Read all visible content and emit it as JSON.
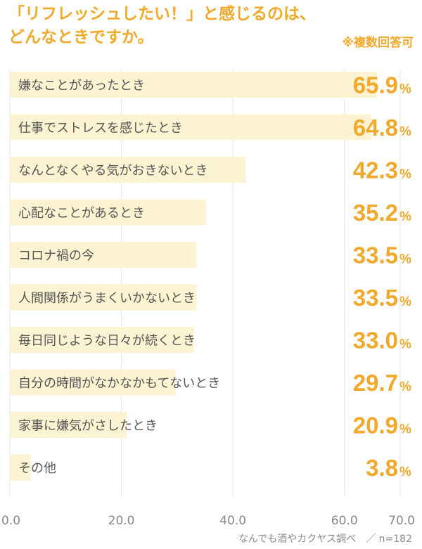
{
  "title_line1": "「リフレッシュしたい！」と感じるのは、",
  "title_line2": "どんなときですか。",
  "note": "※複数回答可",
  "source": "なんでも酒やカクヤス調べ　／ n=182",
  "colors": {
    "accent": "#f0a92a",
    "bar": "#fcf3d2",
    "label": "#555555",
    "axis": "#888888",
    "grid": "#e6e6e6"
  },
  "chart_data": {
    "type": "bar",
    "orientation": "horizontal",
    "categories": [
      "嫌なことがあったとき",
      "仕事でストレスを感じたとき",
      "なんとなくやる気がおきないとき",
      "心配なことがあるとき",
      "コロナ禍の今",
      "人間関係がうまくいかないとき",
      "毎日同じような日々が続くとき",
      "自分の時間がなかなかもてないとき",
      "家事に嫌気がさしたとき",
      "その他"
    ],
    "values": [
      65.9,
      64.8,
      42.3,
      35.2,
      33.5,
      33.5,
      33.0,
      29.7,
      20.9,
      3.8
    ],
    "value_labels": [
      "65.9",
      "64.8",
      "42.3",
      "35.2",
      "33.5",
      "33.5",
      "33.0",
      "29.7",
      "20.9",
      "3.8"
    ],
    "value_unit": "%",
    "xlim": [
      0,
      70
    ],
    "x_ticks": [
      "0.0",
      "20.0",
      "40.0",
      "60.0",
      "70.0"
    ],
    "x_tick_values": [
      0,
      20,
      40,
      60,
      70
    ],
    "xlabel": "",
    "ylabel": "",
    "grid": true
  }
}
